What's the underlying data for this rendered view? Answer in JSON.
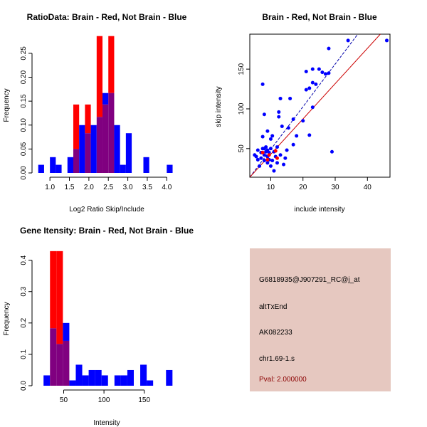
{
  "chart_data": [
    {
      "id": "ratio_hist",
      "type": "bar",
      "title": "RatioData: Brain - Red, Not Brain - Blue",
      "xlabel": "Log2 Ratio Skip/Include",
      "ylabel": "Frequency",
      "xlim": [
        0.65,
        4.25
      ],
      "ylim": [
        0,
        0.29
      ],
      "xticks": [
        1.0,
        1.5,
        2.0,
        2.5,
        3.0,
        3.5,
        4.0
      ],
      "yticks": [
        0.0,
        0.05,
        0.1,
        0.15,
        0.2,
        0.25
      ],
      "bin_start": 0.7,
      "bin_width": 0.15,
      "series": [
        {
          "name": "Not Brain",
          "color": "#0000ff",
          "values": [
            0.017,
            0,
            0.033,
            0.017,
            0,
            0.033,
            0.05,
            0.1,
            0.083,
            0.1,
            0.117,
            0.167,
            0.167,
            0.1,
            0.017,
            0.083,
            0,
            0,
            0.033,
            0,
            0,
            0,
            0.017
          ]
        },
        {
          "name": "Brain",
          "color": "#ff0000",
          "values": [
            0,
            0,
            0,
            0,
            0,
            0,
            0.143,
            0,
            0.143,
            0,
            0.286,
            0.143,
            0.286,
            0,
            0,
            0,
            0,
            0,
            0,
            0,
            0,
            0,
            0
          ]
        }
      ],
      "overlap_color": "#800080"
    },
    {
      "id": "scatter",
      "type": "scatter",
      "title": "Brain - Red, Not Brain - Blue",
      "xlabel": "include intensity",
      "ylabel": "skip intensity",
      "xlim": [
        3.5,
        47
      ],
      "ylim": [
        14,
        194
      ],
      "xticks": [
        10,
        20,
        30,
        40
      ],
      "yticks": [
        50,
        100,
        150
      ],
      "series": [
        {
          "name": "Not Brain",
          "color": "#0000ff",
          "points": [
            [
              5,
              42
            ],
            [
              5.5,
              40
            ],
            [
              6,
              48
            ],
            [
              6,
              36
            ],
            [
              6.5,
              28
            ],
            [
              7,
              45
            ],
            [
              7,
              38
            ],
            [
              7.5,
              50
            ],
            [
              7.5,
              131
            ],
            [
              7.5,
              65
            ],
            [
              8,
              93
            ],
            [
              8,
              50
            ],
            [
              8,
              42
            ],
            [
              8,
              35
            ],
            [
              8.5,
              52
            ],
            [
              8.5,
              46
            ],
            [
              9,
              48
            ],
            [
              9,
              40
            ],
            [
              9,
              32
            ],
            [
              9,
              72
            ],
            [
              9.5,
              45
            ],
            [
              9.5,
              36
            ],
            [
              10,
              62
            ],
            [
              10,
              50
            ],
            [
              10,
              28
            ],
            [
              10.5,
              66
            ],
            [
              10.5,
              35
            ],
            [
              11,
              46
            ],
            [
              11,
              22
            ],
            [
              11.5,
              40
            ],
            [
              12,
              52
            ],
            [
              12,
              32
            ],
            [
              12.5,
              90
            ],
            [
              12.5,
              96
            ],
            [
              13,
              113
            ],
            [
              13,
              42
            ],
            [
              13.5,
              78
            ],
            [
              14,
              30
            ],
            [
              14.5,
              38
            ],
            [
              15,
              48
            ],
            [
              15.5,
              76
            ],
            [
              16,
              113
            ],
            [
              17,
              55
            ],
            [
              17,
              87
            ],
            [
              18,
              66
            ],
            [
              20,
              85
            ],
            [
              21,
              124
            ],
            [
              21,
              147
            ],
            [
              22,
              67
            ],
            [
              22,
              126
            ],
            [
              23,
              102
            ],
            [
              23,
              133
            ],
            [
              23,
              150
            ],
            [
              24,
              131
            ],
            [
              25,
              150
            ],
            [
              26,
              146
            ],
            [
              27,
              144
            ],
            [
              28,
              145
            ],
            [
              28,
              176
            ],
            [
              29,
              46
            ],
            [
              34,
              186
            ],
            [
              46,
              186
            ]
          ]
        },
        {
          "name": "Brain",
          "color": "#ff0000",
          "points": [
            [
              7.5,
              45
            ],
            [
              9,
              36
            ],
            [
              9.5,
              42
            ],
            [
              11.5,
              47
            ],
            [
              12,
              38
            ]
          ]
        }
      ],
      "fit_lines": [
        {
          "color": "#0000aa",
          "dash": "4,2",
          "from": [
            3.5,
            14
          ],
          "to": [
            37,
            194
          ]
        },
        {
          "color": "#cc0000",
          "dash": "",
          "from": [
            3.5,
            14
          ],
          "to": [
            44,
            194
          ]
        }
      ]
    },
    {
      "id": "intensity_hist",
      "type": "bar",
      "title": "Gene Itensity: Brain - Red, Not Brain - Blue",
      "xlabel": "Intensity",
      "ylabel": "Frequency",
      "xlim": [
        16,
        190
      ],
      "ylim": [
        0,
        0.44
      ],
      "xticks": [
        50,
        100,
        150
      ],
      "yticks": [
        0.0,
        0.1,
        0.2,
        0.3,
        0.4
      ],
      "bin_start": 25,
      "bin_width": 8,
      "series": [
        {
          "name": "Not Brain",
          "color": "#0000ff",
          "values": [
            0.033,
            0.183,
            0.133,
            0.2,
            0.017,
            0.067,
            0.033,
            0.05,
            0.05,
            0.033,
            0,
            0.033,
            0.033,
            0.05,
            0,
            0.067,
            0.017,
            0,
            0,
            0.05
          ]
        },
        {
          "name": "Brain",
          "color": "#ff0000",
          "values": [
            0,
            0.429,
            0.429,
            0.143,
            0,
            0,
            0,
            0,
            0,
            0,
            0,
            0,
            0,
            0,
            0,
            0,
            0,
            0,
            0,
            0
          ]
        }
      ],
      "overlap_color": "#800080"
    }
  ],
  "info_panel": {
    "background": "#e6c8c0",
    "probe_id": "G6818935@J907291_RC@j_at",
    "event_type": "altTxEnd",
    "accession": "AK082233",
    "location": "chr1.69-1.s",
    "pval": "Pval: 2.000000",
    "pval_color": "#8b0000"
  }
}
